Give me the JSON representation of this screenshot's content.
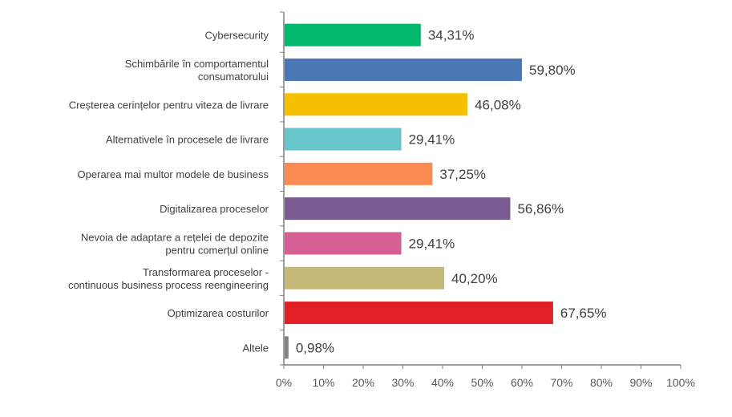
{
  "chart_data": {
    "type": "bar",
    "orientation": "horizontal",
    "title": "",
    "xlabel": "",
    "ylabel": "",
    "xlim": [
      0,
      100
    ],
    "grid": false,
    "categories": [
      [
        "Cybersecurity"
      ],
      [
        "Schimbările în comportamentul",
        "consumatorului"
      ],
      [
        "Creșterea cerințelor pentru viteza de livrare"
      ],
      [
        "Alternativele în procesele de livrare"
      ],
      [
        "Operarea mai multor modele de business"
      ],
      [
        "Digitalizarea proceselor"
      ],
      [
        "Nevoia de adaptare a rețelei de depozite",
        "pentru comerțul online"
      ],
      [
        "Transformarea proceselor -",
        "continuous business process reengineering"
      ],
      [
        "Optimizarea costurilor"
      ],
      [
        "Altele"
      ]
    ],
    "values": [
      34.31,
      59.8,
      46.08,
      29.41,
      37.25,
      56.86,
      29.41,
      40.2,
      67.65,
      0.98
    ],
    "value_labels": [
      "34,31%",
      "59,80%",
      "46,08%",
      "29,41%",
      "37,25%",
      "56,86%",
      "29,41%",
      "40,20%",
      "67,65%",
      "0,98%"
    ],
    "colors": [
      "#00b86b",
      "#4a78b5",
      "#f5c000",
      "#67c6cc",
      "#fb8b50",
      "#7b5a91",
      "#d65f93",
      "#c7b978",
      "#e21e26",
      "#7f8389"
    ],
    "x_ticks": [
      "0%",
      "10%",
      "20%",
      "30%",
      "40%",
      "50%",
      "60%",
      "70%",
      "80%",
      "90%",
      "100%"
    ]
  }
}
